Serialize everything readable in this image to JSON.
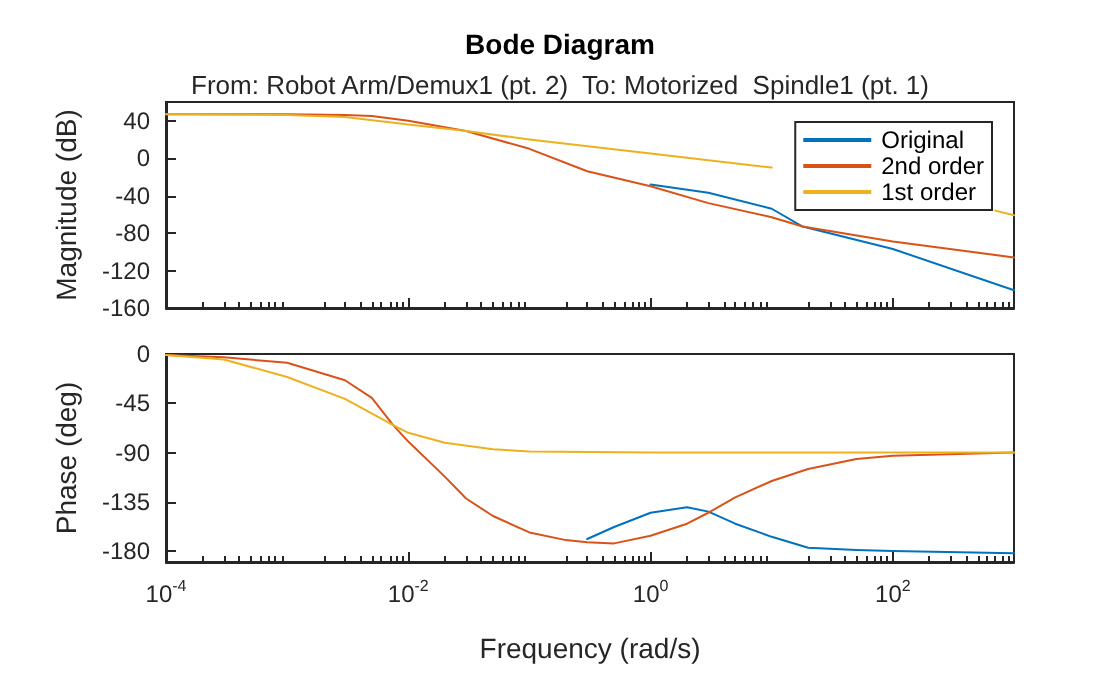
{
  "chart_data": [
    {
      "type": "line",
      "title": "Bode Diagram",
      "subtitle": "From: Robot Arm/Demux1 (pt. 2)  To: Motorized  Spindle1 (pt. 1)",
      "ylabel": "Magnitude (dB)",
      "log": "x",
      "xlim": [
        0.0001,
        1000
      ],
      "ylim": [
        -160,
        60
      ],
      "xticks": [
        {
          "value": 0.0001,
          "label": null
        },
        {
          "value": 0.01,
          "label": null
        },
        {
          "value": 1,
          "label": null
        },
        {
          "value": 100,
          "label": null
        }
      ],
      "yticks": [
        -160,
        -120,
        -80,
        -40,
        0,
        40
      ],
      "tick_labels": "y",
      "grid": false,
      "legend": "top right",
      "series": [
        {
          "name": "Original",
          "color": "#0072bd",
          "x": [
            1,
            3,
            10,
            18,
            100,
            1000
          ],
          "values": [
            -28,
            -37,
            -54,
            -73,
            -97,
            -141
          ]
        },
        {
          "name": "2nd order",
          "color": "#d95319",
          "x": [
            0.0001,
            0.001,
            0.003,
            0.005,
            0.01,
            0.03,
            0.1,
            0.3,
            1,
            3,
            10,
            18,
            100,
            1000
          ],
          "values": [
            47,
            47,
            46,
            45,
            40,
            29,
            10,
            -14,
            -30,
            -48,
            -63,
            -73,
            -89,
            -106
          ]
        },
        {
          "name": "1st order",
          "color": "#edb120",
          "x": [
            0.0001,
            0.001,
            0.003,
            0.01,
            0.03,
            0.1,
            1,
            10,
            100,
            700,
            1000
          ],
          "values": [
            47,
            46,
            44,
            36,
            29,
            20,
            5,
            -10,
            null,
            -56,
            -61
          ]
        }
      ]
    },
    {
      "type": "line",
      "xlabel": "Frequency (rad/s)",
      "ylabel": "Phase (deg)",
      "log": "x",
      "xlim": [
        0.0001,
        1000
      ],
      "ylim": [
        -190,
        0
      ],
      "xticks": [
        {
          "value": 0.0001,
          "label": "10$^{-4}$"
        },
        {
          "value": 0.01,
          "label": "10$^{-2}$"
        },
        {
          "value": 1,
          "label": "10$^{0}$"
        },
        {
          "value": 100,
          "label": "10$^{2}$"
        }
      ],
      "yticks": [
        -180,
        -135,
        -90,
        -45,
        0
      ],
      "grid": false,
      "series": [
        {
          "color": "#0072bd",
          "x": [
            0.3,
            0.5,
            1,
            2,
            3,
            5,
            10,
            20,
            50,
            100,
            1000
          ],
          "values": [
            -169,
            -158,
            -145,
            -140,
            -144,
            -155,
            -167,
            -177,
            -179,
            -180,
            -182
          ]
        },
        {
          "color": "#d95319",
          "x": [
            0.0001,
            0.0003,
            0.001,
            0.003,
            0.005,
            0.0075,
            0.01,
            0.02,
            0.03,
            0.05,
            0.1,
            0.2,
            0.3,
            0.5,
            1,
            2,
            3,
            5,
            10,
            20,
            50,
            100,
            1000
          ],
          "values": [
            -1,
            -3,
            -8,
            -24,
            -40,
            -65,
            -80,
            -112,
            -132,
            -148,
            -163,
            -170,
            -172,
            -173,
            -166,
            -155,
            -145,
            -131,
            -116,
            -105,
            -96,
            -93,
            -90
          ]
        },
        {
          "color": "#edb120",
          "x": [
            0.0001,
            0.0003,
            0.001,
            0.003,
            0.0075,
            0.01,
            0.02,
            0.05,
            0.1,
            1,
            1000
          ],
          "values": [
            -1,
            -5,
            -21,
            -41,
            -65,
            -72,
            -81,
            -87,
            -89,
            -90,
            -90
          ]
        }
      ]
    }
  ]
}
